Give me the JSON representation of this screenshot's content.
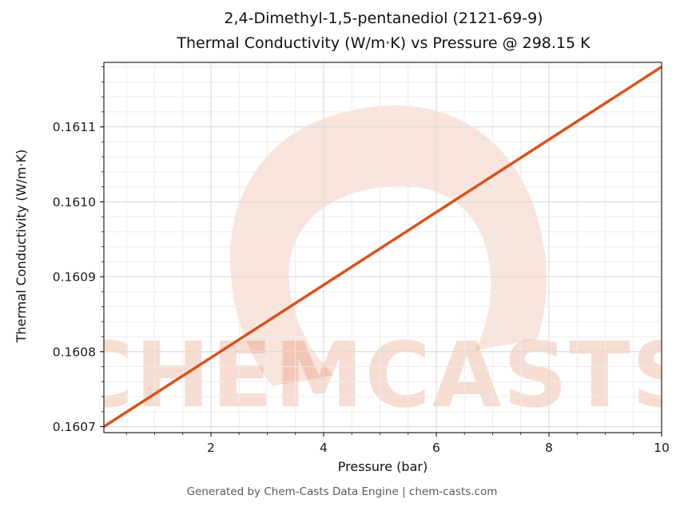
{
  "title": {
    "line1": "2,4-Dimethyl-1,5-pentanediol (2121-69-9)",
    "line2": "Thermal Conductivity (W/m·K) vs Pressure @ 298.15 K"
  },
  "footer": "Generated by Chem-Casts Data Engine | chem-casts.com",
  "watermark": {
    "logo_glyph": "C",
    "text": "CHEMCASTS",
    "color": "#d9531e"
  },
  "chart_data": {
    "type": "line",
    "title": "2,4-Dimethyl-1,5-pentanediol (2121-69-9) Thermal Conductivity (W/m·K) vs Pressure @ 298.15 K",
    "xlabel": "Pressure (bar)",
    "ylabel": "Thermal Conductivity (W/m·K)",
    "xlim": [
      0.1,
      10
    ],
    "ylim": [
      0.160692,
      0.161186
    ],
    "x_ticks": [
      2,
      4,
      6,
      8,
      10
    ],
    "x_tick_labels": [
      "2",
      "4",
      "6",
      "8",
      "10"
    ],
    "y_ticks": [
      0.1607,
      0.1608,
      0.1609,
      0.161,
      0.1611
    ],
    "y_tick_labels": [
      "0.1607",
      "0.1608",
      "0.1609",
      "0.1610",
      "0.1611"
    ],
    "x_minor_step": 0.5,
    "y_minor_step": 2e-05,
    "grid": true,
    "legend": "none",
    "series": [
      {
        "name": "thermal-conductivity-vs-pressure",
        "color": "#d9531e",
        "line_width": 3.5,
        "x": [
          0.1,
          2,
          4,
          6,
          8,
          10
        ],
        "y": [
          0.1607,
          0.160792,
          0.160889,
          0.160986,
          0.161083,
          0.16118
        ]
      }
    ],
    "colors": {
      "grid_major": "#d8d8d8",
      "grid_minor": "#ececec",
      "spine": "#262626",
      "tick_label": "#1a1a1a"
    }
  }
}
